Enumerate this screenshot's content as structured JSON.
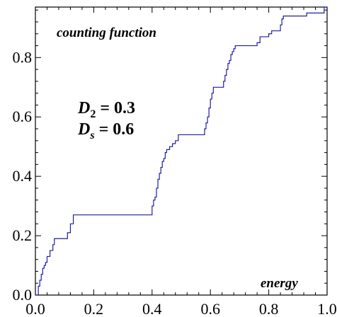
{
  "chart_data": {
    "type": "line",
    "title": "",
    "xlabel": "",
    "ylabel": "",
    "xlim": [
      0.0,
      1.0
    ],
    "ylim": [
      0.0,
      0.97
    ],
    "x_ticks": [
      0.0,
      0.2,
      0.4,
      0.6,
      0.8,
      1.0
    ],
    "x_tick_labels": [
      "0.0",
      "0.2",
      "0.4",
      "0.6",
      "0.8",
      "1.0"
    ],
    "y_ticks": [
      0.0,
      0.2,
      0.4,
      0.6,
      0.8
    ],
    "y_tick_labels": [
      "0.0",
      "0.2",
      "0.4",
      "0.6",
      "0.8"
    ],
    "grid": false,
    "line_color": "#1f1fa0",
    "annotations": {
      "top_left": "counting function",
      "bottom_right": "energy",
      "d2_symbol": "D",
      "d2_subscript": "2",
      "d2_value": "= 0.3",
      "ds_symbol": "D",
      "ds_subscript": "s",
      "ds_value": "= 0.6"
    },
    "series": [
      {
        "x": [
          0.0,
          0.01,
          0.01,
          0.015,
          0.015,
          0.02,
          0.02,
          0.025,
          0.025,
          0.03,
          0.03,
          0.035,
          0.035,
          0.04,
          0.04,
          0.05,
          0.05,
          0.06,
          0.06,
          0.065,
          0.065,
          0.11,
          0.11,
          0.12,
          0.12,
          0.13,
          0.13,
          0.4,
          0.4,
          0.405,
          0.405,
          0.41,
          0.41,
          0.415,
          0.415,
          0.42,
          0.42,
          0.425,
          0.425,
          0.43,
          0.43,
          0.435,
          0.435,
          0.44,
          0.44,
          0.445,
          0.445,
          0.45,
          0.45,
          0.46,
          0.46,
          0.47,
          0.47,
          0.48,
          0.48,
          0.49,
          0.49,
          0.5,
          0.5,
          0.58,
          0.58,
          0.585,
          0.585,
          0.59,
          0.59,
          0.595,
          0.595,
          0.6,
          0.6,
          0.605,
          0.605,
          0.61,
          0.61,
          0.645,
          0.645,
          0.65,
          0.65,
          0.655,
          0.655,
          0.66,
          0.66,
          0.665,
          0.665,
          0.67,
          0.67,
          0.675,
          0.675,
          0.68,
          0.68,
          0.685,
          0.685,
          0.69,
          0.69,
          0.76,
          0.76,
          0.77,
          0.77,
          0.8,
          0.8,
          0.81,
          0.81,
          0.84,
          0.84,
          0.845,
          0.845,
          0.85,
          0.85,
          0.93,
          0.93,
          0.99,
          0.99,
          1.0
        ],
        "y": [
          0.0,
          0.0,
          0.03,
          0.03,
          0.05,
          0.05,
          0.07,
          0.07,
          0.09,
          0.09,
          0.1,
          0.1,
          0.11,
          0.11,
          0.13,
          0.13,
          0.15,
          0.15,
          0.17,
          0.17,
          0.19,
          0.19,
          0.21,
          0.21,
          0.24,
          0.24,
          0.27,
          0.27,
          0.3,
          0.3,
          0.32,
          0.32,
          0.33,
          0.33,
          0.36,
          0.36,
          0.39,
          0.39,
          0.41,
          0.41,
          0.43,
          0.43,
          0.45,
          0.45,
          0.46,
          0.46,
          0.48,
          0.48,
          0.49,
          0.49,
          0.5,
          0.5,
          0.51,
          0.51,
          0.52,
          0.52,
          0.54,
          0.54,
          0.54,
          0.54,
          0.56,
          0.56,
          0.58,
          0.58,
          0.6,
          0.6,
          0.63,
          0.63,
          0.66,
          0.66,
          0.68,
          0.68,
          0.7,
          0.7,
          0.72,
          0.72,
          0.74,
          0.74,
          0.76,
          0.76,
          0.78,
          0.78,
          0.79,
          0.79,
          0.81,
          0.81,
          0.82,
          0.82,
          0.83,
          0.83,
          0.84,
          0.84,
          0.84,
          0.84,
          0.85,
          0.85,
          0.87,
          0.87,
          0.88,
          0.88,
          0.89,
          0.89,
          0.91,
          0.91,
          0.93,
          0.93,
          0.94,
          0.94,
          0.95,
          0.95,
          0.97,
          0.97
        ]
      }
    ]
  }
}
